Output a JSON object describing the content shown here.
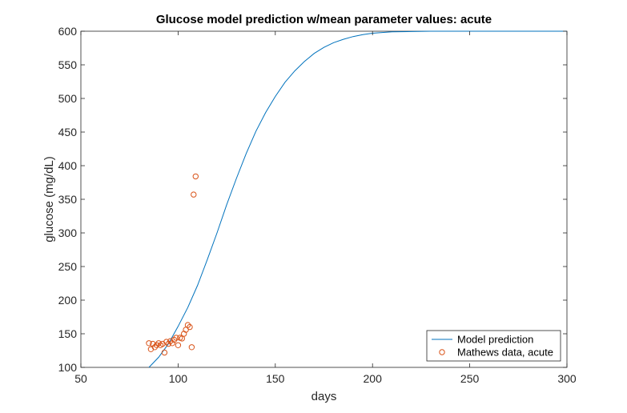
{
  "chart_data": {
    "type": "line",
    "title": "Glucose model prediction w/mean parameter values: acute",
    "xlabel": "days",
    "ylabel": "glucose (mg/dL)",
    "xlim": [
      50,
      300
    ],
    "ylim": [
      100,
      600
    ],
    "xticks": [
      "50",
      "100",
      "150",
      "200",
      "250",
      "300"
    ],
    "yticks": [
      "100",
      "150",
      "200",
      "250",
      "300",
      "350",
      "400",
      "450",
      "500",
      "550",
      "600"
    ],
    "grid": false,
    "legend_position": "bottom-right",
    "series": [
      {
        "name": "Model prediction",
        "type": "line",
        "color": "#0072BD",
        "x": [
          85,
          90,
          95,
          100,
          105,
          110,
          115,
          120,
          125,
          130,
          135,
          140,
          145,
          150,
          155,
          160,
          165,
          170,
          175,
          180,
          185,
          190,
          195,
          200,
          210,
          220,
          230,
          240,
          250,
          260,
          280,
          300
        ],
        "y": [
          100,
          115,
          135,
          161,
          189,
          222,
          260,
          300,
          342,
          381,
          418,
          451,
          479,
          503,
          524,
          541,
          555,
          567,
          576,
          583,
          588,
          592,
          595,
          597,
          599,
          599.5,
          600,
          600,
          600,
          600,
          600,
          600
        ]
      },
      {
        "name": "Mathews data, acute",
        "type": "scatter",
        "color": "#D95319",
        "x": [
          85,
          86,
          87,
          88,
          89,
          90,
          91,
          92,
          93,
          94,
          95,
          96,
          97,
          98,
          99,
          100,
          101,
          102,
          103,
          104,
          105,
          106,
          107,
          108,
          109
        ],
        "y": [
          136,
          127,
          135,
          130,
          133,
          136,
          133,
          135,
          122,
          138,
          135,
          139,
          136,
          141,
          144,
          133,
          144,
          143,
          150,
          156,
          163,
          160,
          130,
          357,
          384
        ]
      }
    ]
  }
}
